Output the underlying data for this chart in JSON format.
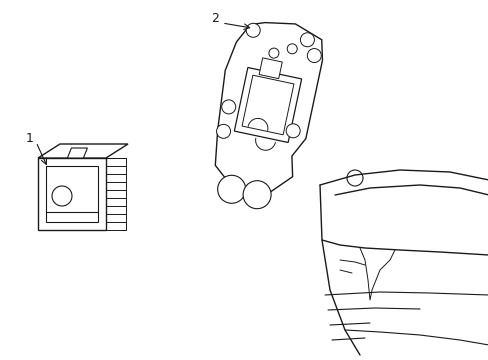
{
  "background_color": "#ffffff",
  "line_color": "#1a1a1a",
  "line_width": 1.0,
  "fig_width": 4.89,
  "fig_height": 3.6,
  "dpi": 100
}
